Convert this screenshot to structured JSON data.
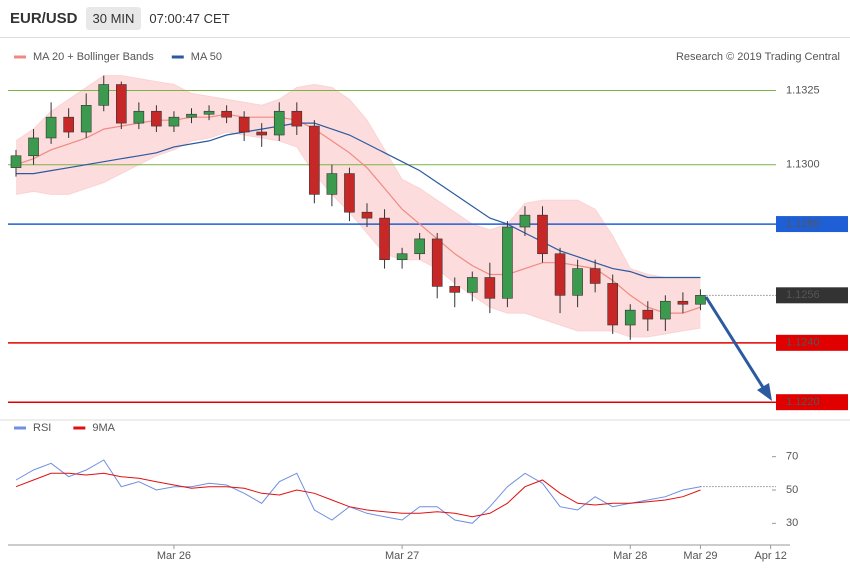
{
  "header": {
    "symbol": "EUR/USD",
    "interval": "30 MIN",
    "time": "07:00:47 CET"
  },
  "credit": "Research © 2019 Trading Central",
  "chart_data": [
    {
      "type": "candlestick",
      "up_color": "#3c9a4e",
      "down_color": "#c62828",
      "open": [
        1.1299,
        1.1303,
        1.1309,
        1.1316,
        1.1311,
        1.132,
        1.1327,
        1.1314,
        1.1318,
        1.1313,
        1.1316,
        1.1317,
        1.1318,
        1.1316,
        1.1311,
        1.131,
        1.1318,
        1.1313,
        1.129,
        1.1297,
        1.1284,
        1.1282,
        1.1268,
        1.127,
        1.1275,
        1.1259,
        1.1257,
        1.1262,
        1.1255,
        1.1279,
        1.1283,
        1.127,
        1.1256,
        1.1265,
        1.126,
        1.1246,
        1.1251,
        1.1248,
        1.1254,
        1.1253,
        null,
        null,
        null,
        null,
        null
      ],
      "high": [
        1.1305,
        1.1312,
        1.1321,
        1.1319,
        1.1324,
        1.133,
        1.1328,
        1.1321,
        1.132,
        1.1318,
        1.1319,
        1.132,
        1.132,
        1.1318,
        1.1314,
        1.1321,
        1.1321,
        1.1315,
        1.13,
        1.1299,
        1.1287,
        1.1285,
        1.1272,
        1.1277,
        1.1277,
        1.1262,
        1.1264,
        1.1267,
        1.1281,
        1.1286,
        1.1286,
        1.1272,
        1.1268,
        1.1268,
        1.1263,
        1.1253,
        1.1254,
        1.1256,
        1.1257,
        1.1258,
        null,
        null,
        null,
        null,
        null
      ],
      "low": [
        1.1296,
        1.13,
        1.1307,
        1.1309,
        1.1309,
        1.1318,
        1.1312,
        1.1312,
        1.1311,
        1.1311,
        1.1314,
        1.1315,
        1.1314,
        1.1308,
        1.1306,
        1.1308,
        1.131,
        1.1287,
        1.1286,
        1.1281,
        1.1279,
        1.1265,
        1.1265,
        1.1268,
        1.1255,
        1.1252,
        1.1254,
        1.125,
        1.1252,
        1.1276,
        1.1267,
        1.125,
        1.1252,
        1.1257,
        1.1243,
        1.1241,
        1.1244,
        1.1244,
        1.125,
        1.1251,
        null,
        null,
        null,
        null,
        null
      ],
      "close": [
        1.1303,
        1.1309,
        1.1316,
        1.1311,
        1.132,
        1.1327,
        1.1314,
        1.1318,
        1.1313,
        1.1316,
        1.1317,
        1.1318,
        1.1316,
        1.1311,
        1.131,
        1.1318,
        1.1313,
        1.129,
        1.1297,
        1.1284,
        1.1282,
        1.1268,
        1.127,
        1.1275,
        1.1259,
        1.1257,
        1.1262,
        1.1255,
        1.1279,
        1.1283,
        1.127,
        1.1256,
        1.1265,
        1.126,
        1.1246,
        1.1251,
        1.1248,
        1.1254,
        1.1253,
        1.1256,
        null,
        null,
        null,
        null,
        null
      ],
      "overlays": [
        {
          "name": "MA 20 + Bollinger Bands",
          "color": "#f08a80",
          "band_color": "#fbd3d3",
          "values": [
            1.13,
            1.1302,
            1.1305,
            1.1307,
            1.1309,
            1.1312,
            1.1313,
            1.1314,
            1.1315,
            1.1315,
            1.1316,
            1.1316,
            1.1317,
            1.1316,
            1.1316,
            1.1316,
            1.1315,
            1.1312,
            1.1308,
            1.1304,
            1.1299,
            1.1292,
            1.1285,
            1.128,
            1.1275,
            1.127,
            1.1266,
            1.1263,
            1.1263,
            1.1265,
            1.1267,
            1.1267,
            1.1266,
            1.1265,
            1.1261,
            1.1256,
            1.1252,
            1.125,
            1.125,
            1.1252,
            null,
            null,
            null,
            null,
            null
          ],
          "upper": [
            1.1308,
            1.1312,
            1.1318,
            1.1322,
            1.1326,
            1.133,
            1.133,
            1.1329,
            1.1328,
            1.1327,
            1.1324,
            1.1323,
            1.1322,
            1.1321,
            1.132,
            1.1322,
            1.1326,
            1.1327,
            1.1326,
            1.1322,
            1.1315,
            1.1305,
            1.1295,
            1.1292,
            1.1288,
            1.1284,
            1.128,
            1.1278,
            1.128,
            1.1287,
            1.1288,
            1.1288,
            1.1288,
            1.1285,
            1.1276,
            1.1265,
            1.1263,
            1.1262,
            1.1262,
            1.1262,
            null,
            null,
            null,
            null,
            null
          ],
          "lower": [
            1.129,
            1.1291,
            1.129,
            1.129,
            1.1292,
            1.1294,
            1.1297,
            1.13,
            1.1303,
            1.1305,
            1.1308,
            1.1309,
            1.1311,
            1.131,
            1.1309,
            1.1308,
            1.1306,
            1.1297,
            1.129,
            1.1284,
            1.1277,
            1.127,
            1.1268,
            1.1268,
            1.1265,
            1.126,
            1.1256,
            1.1252,
            1.125,
            1.125,
            1.1248,
            1.1246,
            1.1244,
            1.1244,
            1.1244,
            1.1242,
            1.1242,
            1.1243,
            1.1244,
            1.1245,
            null,
            null,
            null,
            null,
            null
          ]
        },
        {
          "name": "MA 50",
          "color": "#2c5aa0",
          "values": [
            1.1297,
            1.1297,
            1.1298,
            1.1299,
            1.13,
            1.1301,
            1.1302,
            1.1303,
            1.1304,
            1.1306,
            1.1307,
            1.1308,
            1.131,
            1.1311,
            1.1312,
            1.1313,
            1.1314,
            1.1314,
            1.1312,
            1.131,
            1.1307,
            1.1304,
            1.1301,
            1.1298,
            1.1294,
            1.129,
            1.1286,
            1.1282,
            1.128,
            1.1277,
            1.1274,
            1.1271,
            1.1269,
            1.1267,
            1.1265,
            1.1264,
            1.1262,
            1.1262,
            1.1262,
            1.1262,
            null,
            null,
            null,
            null,
            null
          ]
        }
      ],
      "ylim": [
        1.1214,
        1.1342
      ],
      "levels": [
        {
          "value": 1.1325,
          "label": "1.1325",
          "color": "#7cb342",
          "boxed": false
        },
        {
          "value": 1.13,
          "label": "1.1300",
          "color": "#7cb342",
          "boxed": false
        },
        {
          "value": 1.128,
          "label": "1.1280",
          "color": "#1f5fd6",
          "boxed": true
        },
        {
          "value": 1.124,
          "label": "1.1240",
          "color": "#e00000",
          "boxed": true
        },
        {
          "value": 1.122,
          "label": "1.1220",
          "color": "#e00000",
          "boxed": true
        }
      ],
      "last_price": 1.1256,
      "last_color": "#333333"
    },
    {
      "type": "line",
      "categories": [
        null,
        null,
        null,
        null,
        null,
        null,
        null,
        null,
        null,
        "Mar 26",
        null,
        null,
        null,
        null,
        null,
        null,
        null,
        null,
        null,
        null,
        null,
        null,
        "Mar 27",
        null,
        null,
        null,
        null,
        null,
        null,
        null,
        null,
        null,
        null,
        null,
        null,
        "Mar 28",
        null,
        null,
        null,
        "Mar 29",
        null,
        null,
        null,
        "Apr 12",
        null
      ],
      "series": [
        {
          "name": "RSI",
          "color": "#6f8fe0",
          "values": [
            56,
            62,
            66,
            58,
            62,
            68,
            52,
            55,
            50,
            52,
            52,
            54,
            53,
            48,
            42,
            55,
            60,
            38,
            32,
            40,
            36,
            34,
            32,
            40,
            40,
            32,
            30,
            40,
            52,
            60,
            54,
            40,
            38,
            46,
            40,
            42,
            44,
            46,
            50,
            52,
            null,
            null,
            null,
            null,
            null
          ]
        },
        {
          "name": "9MA",
          "color": "#e01010",
          "values": [
            52,
            56,
            60,
            60,
            59,
            60,
            58,
            57,
            55,
            53,
            51,
            52,
            52,
            51,
            48,
            47,
            50,
            48,
            44,
            40,
            38,
            37,
            36,
            36,
            37,
            36,
            34,
            36,
            42,
            52,
            56,
            48,
            42,
            41,
            42,
            42,
            43,
            44,
            46,
            50,
            null,
            null,
            null,
            null,
            null
          ]
        }
      ],
      "ylim": [
        20,
        86
      ],
      "yticks": [
        30,
        50,
        70
      ]
    }
  ]
}
